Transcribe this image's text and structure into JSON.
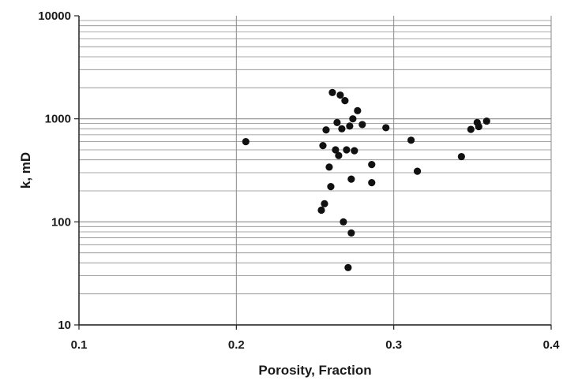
{
  "chart_data": {
    "type": "scatter",
    "title": "",
    "xlabel": "Porosity, Fraction",
    "ylabel": "k, mD",
    "xlim": [
      0.1,
      0.4
    ],
    "ylim": [
      10,
      10000
    ],
    "y_scale": "log",
    "grid": true,
    "legend": "none",
    "x_ticks": [
      0.1,
      0.2,
      0.3,
      0.4
    ],
    "x_tick_labels": [
      "0.1",
      "0.2",
      "0.3",
      "0.4"
    ],
    "y_ticks": [
      10,
      100,
      1000,
      10000
    ],
    "y_tick_labels": [
      "10",
      "100",
      "1000",
      "10000"
    ],
    "marker_color": "#111111",
    "grid_color": "#8a8a8a",
    "series": [
      {
        "points": [
          [
            0.206,
            600
          ],
          [
            0.254,
            130
          ],
          [
            0.255,
            550
          ],
          [
            0.256,
            150
          ],
          [
            0.257,
            780
          ],
          [
            0.259,
            340
          ],
          [
            0.26,
            220
          ],
          [
            0.261,
            1800
          ],
          [
            0.263,
            500
          ],
          [
            0.264,
            920
          ],
          [
            0.265,
            440
          ],
          [
            0.266,
            1700
          ],
          [
            0.267,
            800
          ],
          [
            0.268,
            100
          ],
          [
            0.269,
            1500
          ],
          [
            0.27,
            500
          ],
          [
            0.271,
            36
          ],
          [
            0.272,
            850
          ],
          [
            0.273,
            260
          ],
          [
            0.273,
            78
          ],
          [
            0.274,
            1000
          ],
          [
            0.275,
            490
          ],
          [
            0.277,
            1200
          ],
          [
            0.28,
            880
          ],
          [
            0.286,
            360
          ],
          [
            0.286,
            240
          ],
          [
            0.295,
            820
          ],
          [
            0.311,
            620
          ],
          [
            0.315,
            310
          ],
          [
            0.343,
            430
          ],
          [
            0.349,
            790
          ],
          [
            0.353,
            920
          ],
          [
            0.354,
            840
          ],
          [
            0.359,
            950
          ]
        ]
      }
    ]
  }
}
